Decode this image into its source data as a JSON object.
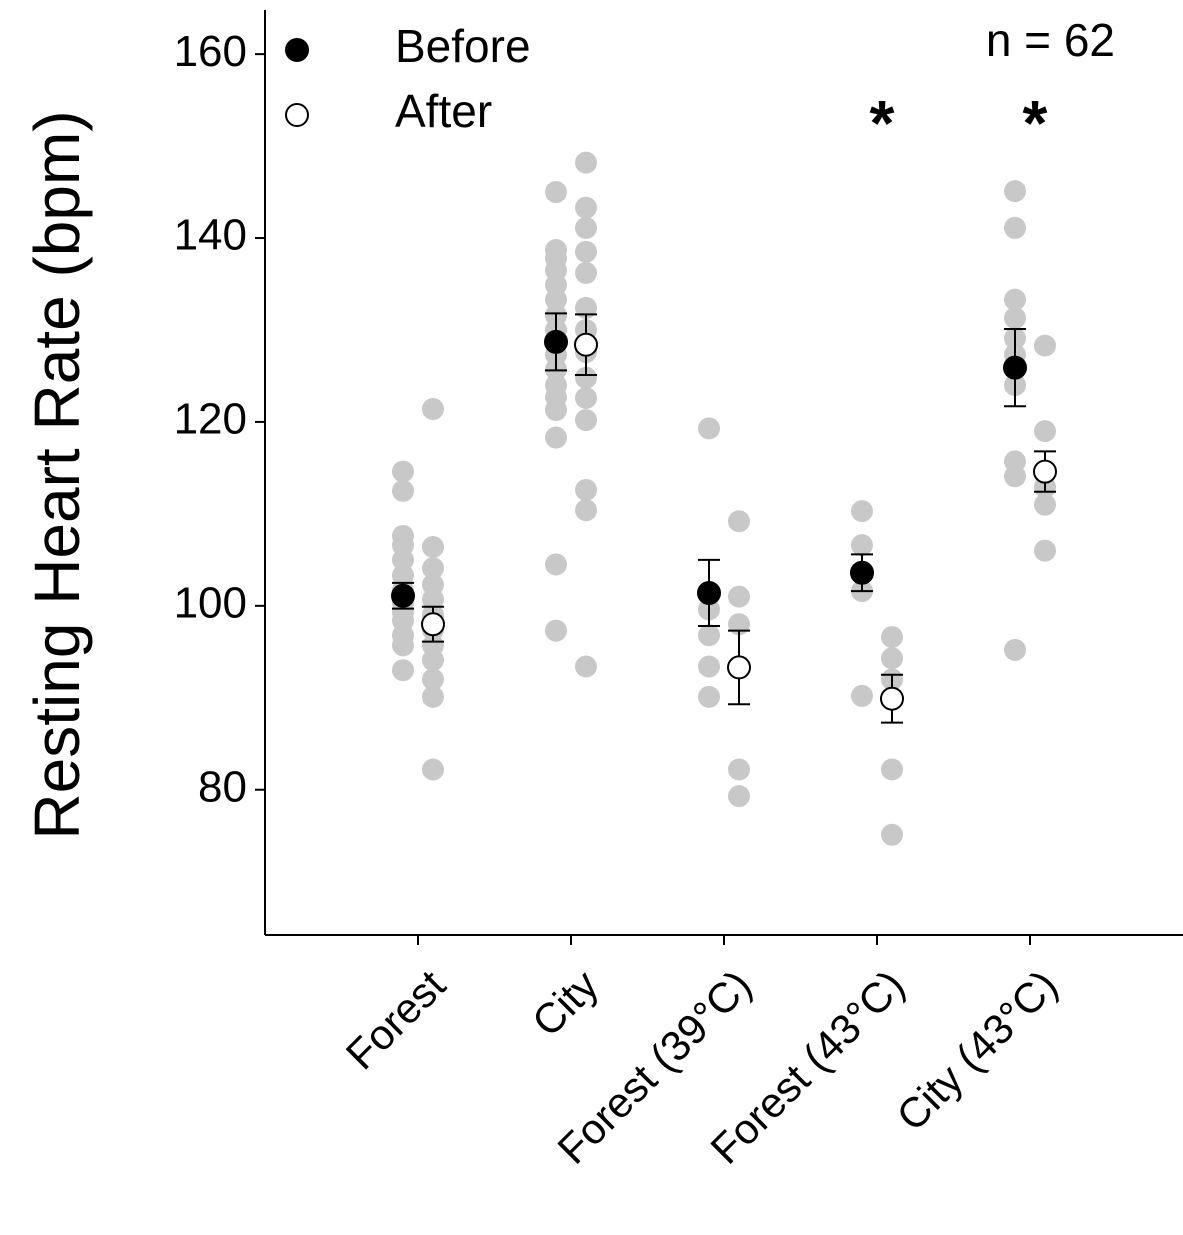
{
  "chart_data": {
    "type": "scatter",
    "y_label": "Resting Heart Rate (bpm)",
    "categories": [
      "Forest",
      "City",
      "Forest (39°C)",
      "Forest (43°C)",
      "City (43°C)"
    ],
    "xlim": [
      0,
      6
    ],
    "ylim": [
      64.2,
      164.8
    ],
    "yticks": [
      80,
      100,
      120,
      140,
      160
    ],
    "points_color": "#c8c8c8",
    "legend": "upper left",
    "series": [
      {
        "name": "Before",
        "color": "#000000",
        "values": [
          101.1,
          128.7,
          101.4,
          103.6,
          125.9
        ],
        "errors": [
          1.4,
          3.1,
          3.6,
          2.0,
          4.2
        ],
        "points": [
          [
            114.6,
            112.5,
            107.6,
            106.6,
            105,
            103.3,
            101.7,
            100.3,
            99.3,
            98.4,
            96.8,
            95.7,
            93
          ],
          [
            145,
            138.7,
            137.8,
            136.5,
            134.9,
            133.3,
            131.6,
            130,
            127.3,
            125.7,
            124,
            122.7,
            121.3,
            118.3,
            104.5,
            97.3
          ],
          [
            119.3,
            101.2,
            99.6,
            96.8,
            93.4,
            90.1
          ],
          [
            110.3,
            106.6,
            101.6,
            90.2
          ],
          [
            145.1,
            141.1,
            133.3,
            131.3,
            129.1,
            127.3,
            124,
            115.7,
            114.1,
            95.2
          ]
        ]
      },
      {
        "name": "After",
        "color": "#ffffff",
        "values": [
          98.0,
          128.4,
          93.3,
          89.9,
          114.6
        ],
        "errors": [
          1.9,
          3.3,
          4.0,
          2.6,
          2.2
        ],
        "points": [
          [
            121.4,
            106.4,
            104.1,
            102.3,
            100.7,
            99,
            97.4,
            95.7,
            94.1,
            92,
            90.1,
            82.2
          ],
          [
            148.2,
            143.3,
            141.1,
            138.5,
            136.2,
            132.4,
            130,
            127.6,
            124.8,
            122.6,
            120.2,
            112.6,
            110.4,
            93.4
          ],
          [
            109.2,
            101,
            98,
            82.2,
            79.3
          ],
          [
            96.6,
            94.3,
            92,
            82.2,
            75.1
          ],
          [
            128.3,
            119,
            112.9,
            111,
            106
          ]
        ]
      }
    ],
    "annotations": [
      {
        "text": "n = 62"
      },
      {
        "text": "*",
        "category": 3
      },
      {
        "text": "*",
        "category": 4
      }
    ]
  }
}
